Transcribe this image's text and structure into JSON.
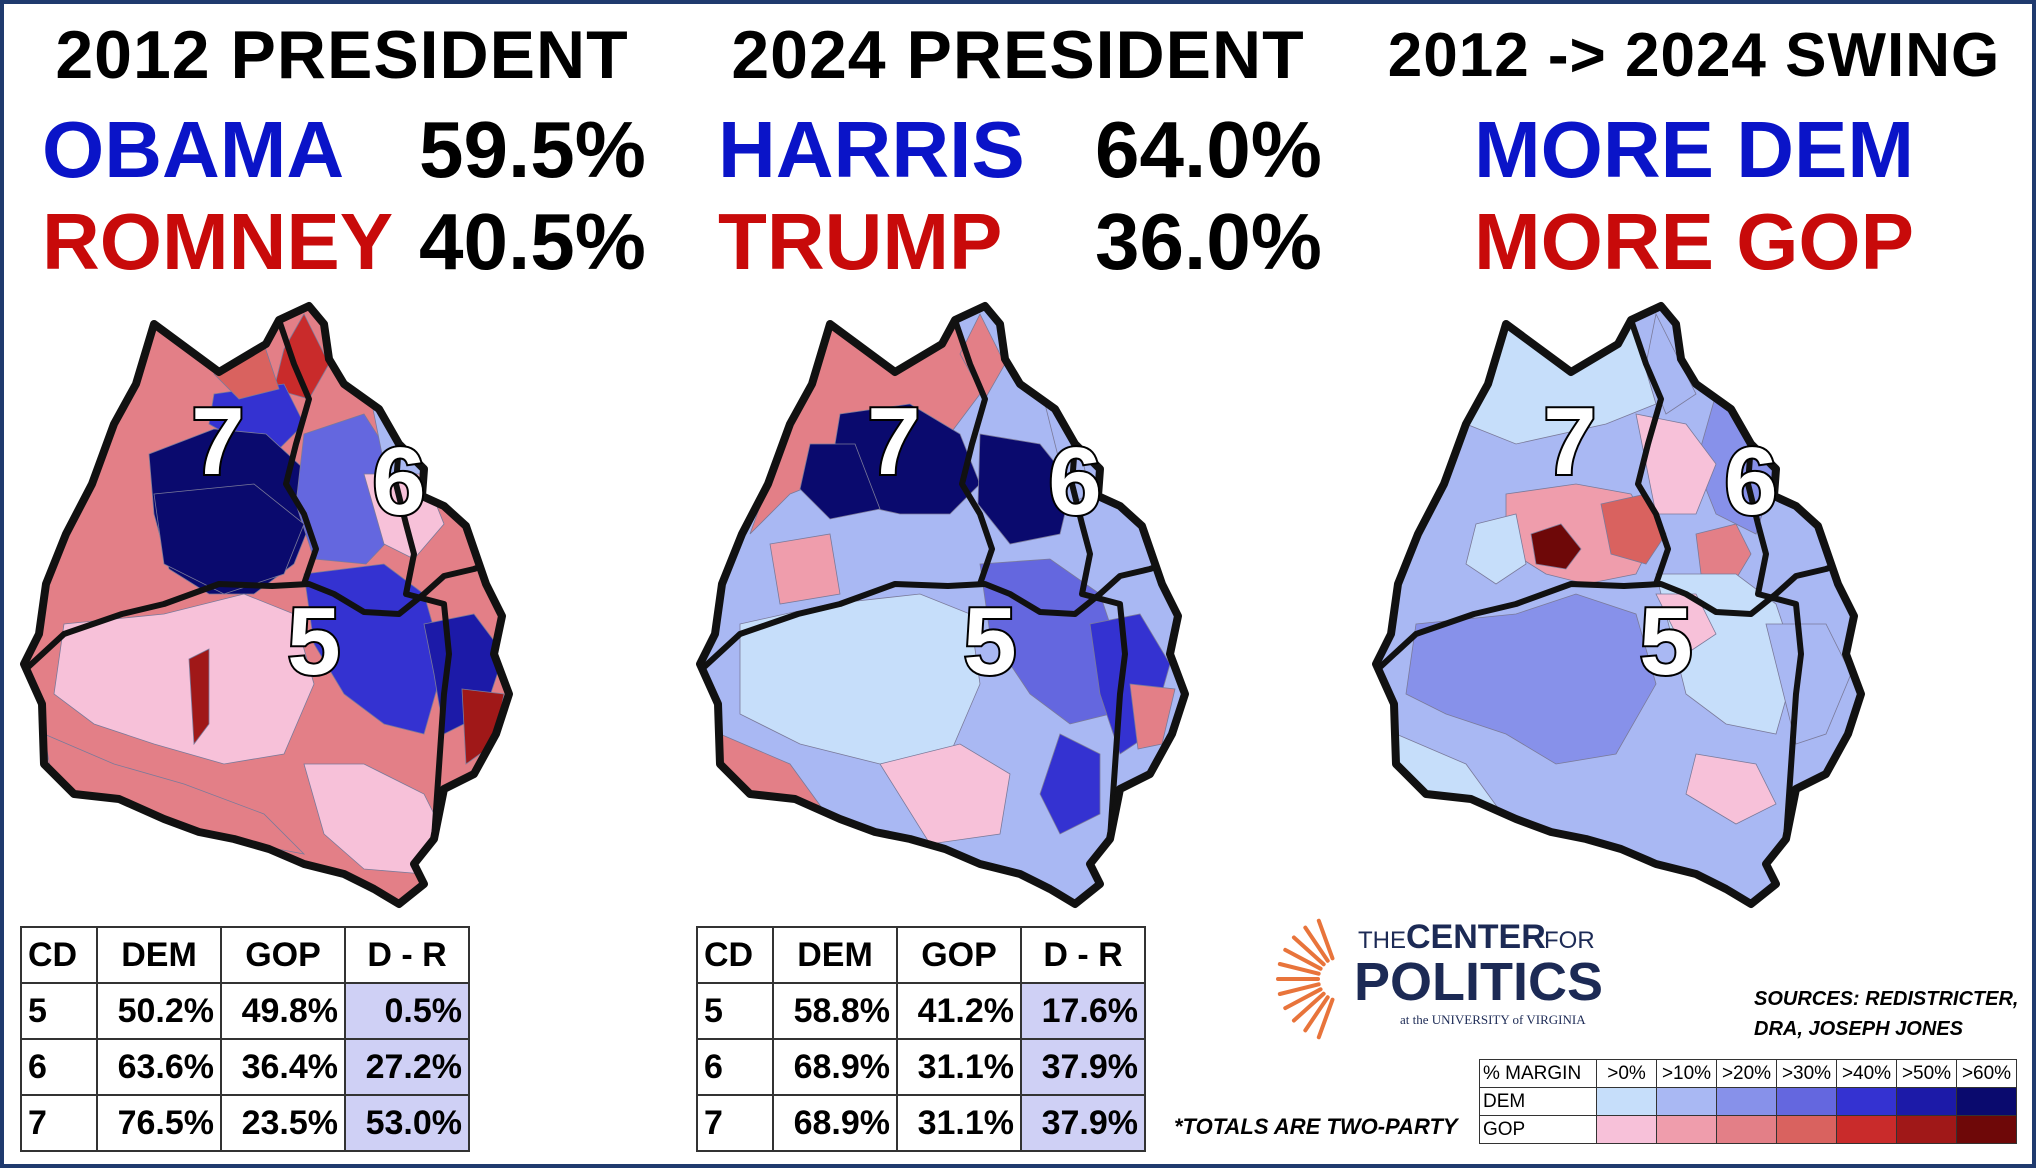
{
  "panels": [
    {
      "title": "2012 PRESIDENT",
      "dem_name": "OBAMA",
      "dem_pct": "59.5%",
      "gop_name": "ROMNEY",
      "gop_pct": "40.5%",
      "table": {
        "headers": [
          "CD",
          "DEM",
          "GOP",
          "D - R"
        ],
        "rows": [
          [
            "5",
            "50.2%",
            "49.8%",
            "0.5%"
          ],
          [
            "6",
            "63.6%",
            "36.4%",
            "27.2%"
          ],
          [
            "7",
            "76.5%",
            "23.5%",
            "53.0%"
          ]
        ]
      }
    },
    {
      "title": "2024 PRESIDENT",
      "dem_name": "HARRIS",
      "dem_pct": "64.0%",
      "gop_name": "TRUMP",
      "gop_pct": "36.0%",
      "table": {
        "headers": [
          "CD",
          "DEM",
          "GOP",
          "D - R"
        ],
        "rows": [
          [
            "5",
            "58.8%",
            "41.2%",
            "17.6%"
          ],
          [
            "6",
            "68.9%",
            "31.1%",
            "37.9%"
          ],
          [
            "7",
            "68.9%",
            "31.1%",
            "37.9%"
          ]
        ]
      }
    },
    {
      "title": "2012 -> 2024 SWING",
      "dem_label": "MORE DEM",
      "gop_label": "MORE GOP"
    }
  ],
  "district_labels": [
    "7",
    "6",
    "5"
  ],
  "logo": {
    "line1": "THE",
    "line1b": "CENTER",
    "line1c": "FOR",
    "line2": "POLITICS",
    "line3": "at the UNIVERSITY of VIRGINIA"
  },
  "sources": [
    "SOURCES: REDISTRICTER,",
    "DRA, JOSEPH JONES"
  ],
  "totals_note": "*TOTALS ARE TWO-PARTY",
  "legend": {
    "header": "% MARGIN",
    "bins": [
      ">0%",
      ">10%",
      ">20%",
      ">30%",
      ">40%",
      ">50%",
      ">60%"
    ],
    "rows": [
      {
        "label": "DEM",
        "colors": [
          "#c6defa",
          "#a9b8f3",
          "#8791ea",
          "#6467df",
          "#3432d1",
          "#1c1aa8",
          "#0a0a6e"
        ]
      },
      {
        "label": "GOP",
        "colors": [
          "#f7c1d9",
          "#ef9dac",
          "#e37f87",
          "#d9625f",
          "#c92b2b",
          "#a01818",
          "#6e0808"
        ]
      }
    ]
  },
  "colors": {
    "dem": "#0a14c8",
    "gop": "#c80a0a"
  }
}
